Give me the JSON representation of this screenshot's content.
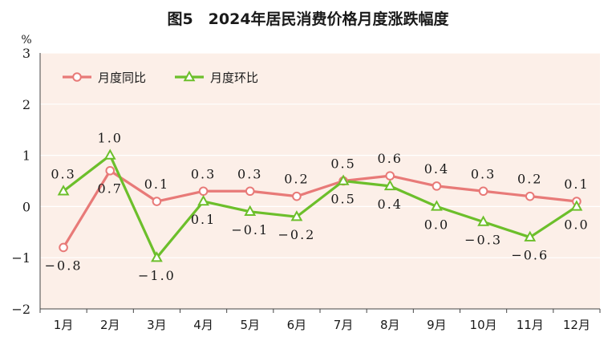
{
  "chart_data": {
    "type": "line",
    "title": "图5　2024年居民消费价格月度涨跌幅度",
    "ylabel": "%",
    "ylim": [
      -2,
      3
    ],
    "yticks": [
      "3",
      "2",
      "1",
      "0",
      "−1",
      "−2"
    ],
    "categories": [
      "1月",
      "2月",
      "3月",
      "4月",
      "5月",
      "6月",
      "7月",
      "8月",
      "9月",
      "10月",
      "11月",
      "12月"
    ],
    "series": [
      {
        "name": "月度同比",
        "color": "#e87a78",
        "marker": "circle",
        "values": [
          -0.8,
          0.7,
          0.1,
          0.3,
          0.3,
          0.2,
          0.5,
          0.6,
          0.4,
          0.3,
          0.2,
          0.1
        ],
        "labels": [
          "−0.8",
          "0.7",
          "0.1",
          "0.3",
          "0.3",
          "0.2",
          "0.5",
          "0.6",
          "0.4",
          "0.3",
          "0.2",
          "0.1"
        ]
      },
      {
        "name": "月度环比",
        "color": "#6cbf2b",
        "marker": "triangle",
        "values": [
          0.3,
          1.0,
          -1.0,
          0.1,
          -0.1,
          -0.2,
          0.5,
          0.4,
          0.0,
          -0.3,
          -0.6,
          0.0
        ],
        "labels": [
          "0.3",
          "1.0",
          "−1.0",
          "0.1",
          "−0.1",
          "−0.2",
          "0.5",
          "0.4",
          "0.0",
          "−0.3",
          "−0.6",
          "0.0"
        ]
      }
    ],
    "grid": true,
    "legend": "top-left",
    "background": "#fcefe8"
  }
}
